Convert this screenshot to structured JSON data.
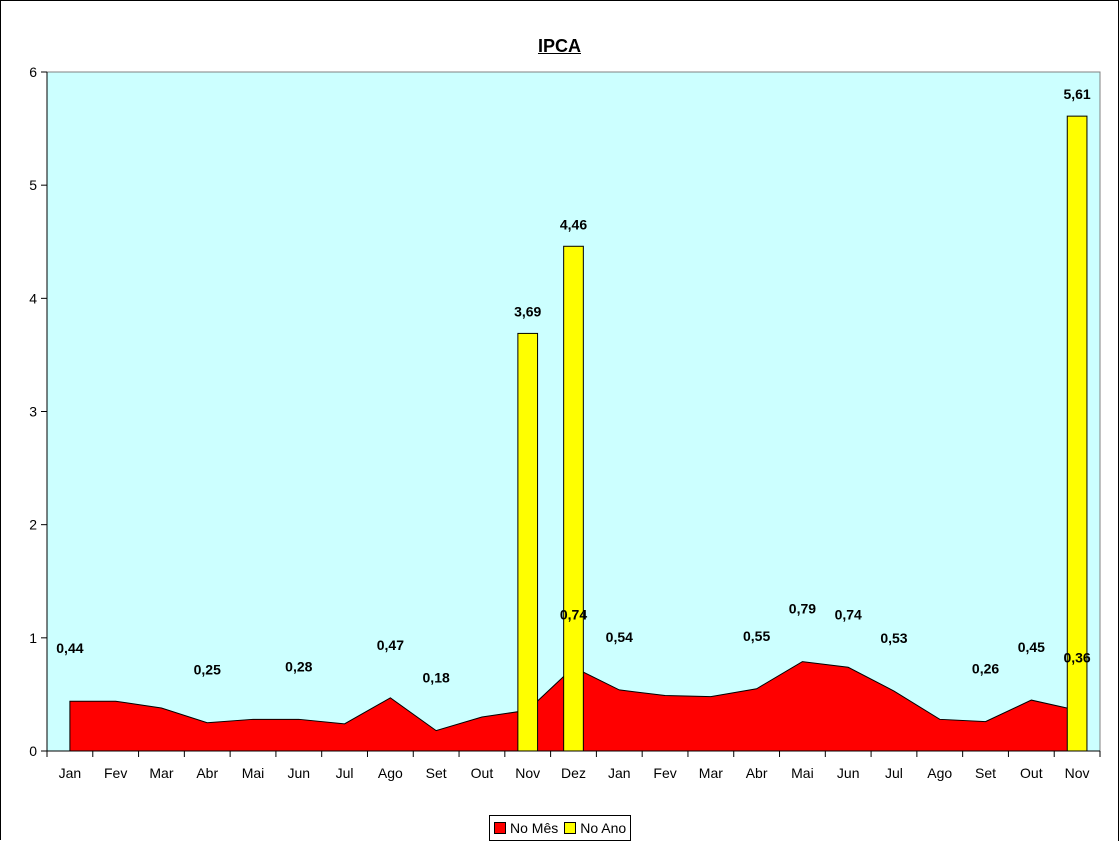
{
  "chart_data": {
    "type": "area",
    "title": "IPCA",
    "xlabel": "",
    "ylabel": "",
    "ylim": [
      0,
      6
    ],
    "yticks": [
      "0",
      "1",
      "2",
      "3",
      "4",
      "5",
      "6"
    ],
    "categories": [
      "Jan",
      "Fev",
      "Mar",
      "Abr",
      "Mai",
      "Jun",
      "Jul",
      "Ago",
      "Set",
      "Out",
      "Nov",
      "Dez",
      "Jan",
      "Fev",
      "Mar",
      "Abr",
      "Mai",
      "Jun",
      "Jul",
      "Ago",
      "Set",
      "Out",
      "Nov"
    ],
    "series": [
      {
        "name": "No Mês",
        "type": "area",
        "color": "#ff0000",
        "values": [
          0.44,
          0.44,
          0.38,
          0.25,
          0.28,
          0.28,
          0.24,
          0.47,
          0.18,
          0.3,
          0.36,
          0.74,
          0.54,
          0.49,
          0.48,
          0.55,
          0.79,
          0.74,
          0.53,
          0.28,
          0.26,
          0.45,
          0.36
        ],
        "labels": [
          "0,44",
          "",
          "",
          "0,25",
          "",
          "0,28",
          "",
          "0,47",
          "0,18",
          "",
          "",
          "0,74",
          "0,54",
          "",
          "",
          "0,55",
          "0,79",
          "0,74",
          "0,53",
          "",
          "0,26",
          "0,45",
          "0,36"
        ]
      },
      {
        "name": "No Ano",
        "type": "bar",
        "color": "#ffff00",
        "values": [
          null,
          null,
          null,
          null,
          null,
          null,
          null,
          null,
          null,
          null,
          3.69,
          4.46,
          null,
          null,
          null,
          null,
          null,
          null,
          null,
          null,
          null,
          null,
          5.61
        ],
        "labels": [
          "",
          "",
          "",
          "",
          "",
          "",
          "",
          "",
          "",
          "",
          "3,69",
          "4,46",
          "",
          "",
          "",
          "",
          "",
          "",
          "",
          "",
          "",
          "",
          "5,61"
        ]
      }
    ],
    "plot_background": "#ccffff",
    "grid": false,
    "legend_position": "bottom"
  }
}
